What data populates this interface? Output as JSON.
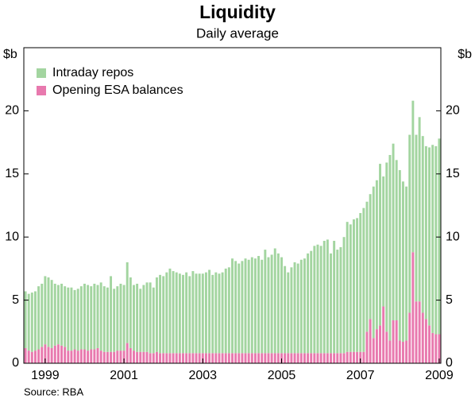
{
  "chart_data": {
    "type": "stacked_bar",
    "title": "Liquidity",
    "subtitle": "Daily average",
    "y_label": "$b",
    "source": "Source: RBA",
    "categories": [
      null,
      null,
      null,
      null,
      null,
      null,
      "1999",
      null,
      null,
      null,
      null,
      null,
      null,
      null,
      null,
      null,
      null,
      null,
      null,
      null,
      null,
      null,
      null,
      null,
      null,
      null,
      null,
      null,
      null,
      null,
      "2001",
      null,
      null,
      null,
      null,
      null,
      null,
      null,
      null,
      null,
      null,
      null,
      null,
      null,
      null,
      null,
      null,
      null,
      null,
      null,
      null,
      null,
      null,
      null,
      "2003",
      null,
      null,
      null,
      null,
      null,
      null,
      null,
      null,
      null,
      null,
      null,
      null,
      null,
      null,
      null,
      null,
      null,
      null,
      null,
      null,
      null,
      null,
      null,
      "2005",
      null,
      null,
      null,
      null,
      null,
      null,
      null,
      null,
      null,
      null,
      null,
      null,
      null,
      null,
      null,
      null,
      null,
      null,
      null,
      null,
      null,
      null,
      null,
      "2007",
      null,
      null,
      null,
      null,
      null,
      null,
      null,
      null,
      null,
      null,
      null,
      null,
      null,
      null,
      null,
      null,
      null,
      null,
      null,
      null,
      null,
      null,
      null,
      "2009"
    ],
    "series": [
      {
        "name": "Opening ESA balances",
        "color": "#e879ae",
        "values": [
          1.2,
          1.0,
          0.9,
          1.0,
          1.1,
          1.3,
          1.5,
          1.3,
          1.2,
          1.4,
          1.5,
          1.4,
          1.3,
          1.0,
          1.0,
          1.1,
          1.0,
          1.1,
          1.1,
          1.0,
          1.1,
          1.1,
          1.2,
          1.0,
          0.9,
          0.9,
          0.9,
          0.9,
          1.0,
          1.0,
          1.0,
          1.6,
          1.2,
          1.0,
          0.9,
          0.9,
          0.9,
          0.9,
          0.8,
          0.8,
          0.9,
          0.8,
          0.8,
          0.8,
          0.8,
          0.8,
          0.8,
          0.8,
          0.8,
          0.8,
          0.8,
          0.8,
          0.8,
          0.8,
          0.8,
          0.8,
          0.8,
          0.8,
          0.8,
          0.8,
          0.8,
          0.8,
          0.8,
          0.8,
          0.8,
          0.8,
          0.8,
          0.8,
          0.8,
          0.8,
          0.8,
          0.8,
          0.8,
          0.8,
          0.8,
          0.8,
          0.8,
          0.8,
          0.8,
          0.8,
          0.8,
          0.8,
          0.8,
          0.8,
          0.8,
          0.8,
          0.8,
          0.8,
          0.8,
          0.8,
          0.8,
          0.8,
          0.8,
          0.8,
          0.8,
          0.8,
          0.8,
          0.8,
          0.9,
          0.9,
          0.9,
          0.9,
          0.9,
          0.9,
          2.5,
          3.5,
          2.0,
          2.7,
          3.0,
          4.5,
          2.5,
          1.8,
          3.4,
          3.4,
          1.8,
          1.7,
          1.8,
          4.0,
          8.8,
          4.9,
          4.9,
          4.0,
          3.5,
          3.0,
          2.4,
          2.3,
          2.3
        ]
      },
      {
        "name": "Intraday repos",
        "color": "#a3d5a0",
        "values": [
          4.5,
          4.5,
          4.7,
          4.7,
          5.0,
          5.0,
          5.4,
          5.5,
          5.4,
          4.9,
          4.7,
          4.9,
          4.8,
          5.0,
          5.0,
          4.7,
          4.9,
          5.0,
          5.2,
          5.2,
          5.0,
          5.2,
          5.0,
          5.4,
          5.2,
          5.1,
          6.0,
          5.0,
          5.1,
          5.3,
          5.2,
          6.4,
          5.6,
          5.2,
          5.4,
          5.0,
          5.3,
          5.5,
          5.6,
          5.2,
          5.9,
          6.2,
          6.1,
          6.4,
          6.7,
          6.5,
          6.4,
          6.3,
          6.2,
          6.4,
          6.1,
          6.5,
          6.3,
          6.3,
          6.3,
          6.4,
          6.6,
          6.2,
          6.4,
          6.3,
          6.4,
          6.7,
          6.8,
          7.5,
          7.3,
          7.1,
          7.3,
          7.5,
          7.4,
          7.6,
          7.5,
          7.7,
          7.4,
          8.2,
          7.6,
          7.8,
          8.3,
          7.9,
          7.6,
          6.9,
          6.4,
          6.8,
          7.2,
          7.1,
          7.4,
          7.5,
          7.9,
          8.1,
          8.5,
          8.6,
          8.5,
          8.9,
          9.0,
          7.9,
          8.9,
          8.2,
          8.4,
          9.2,
          10.3,
          10.1,
          10.5,
          10.6,
          11.0,
          11.4,
          10.3,
          9.9,
          12.0,
          11.8,
          12.8,
          10.3,
          13.4,
          14.7,
          14.0,
          12.7,
          13.5,
          12.7,
          12.2,
          14.1,
          12.0,
          13.2,
          14.6,
          14.0,
          13.7,
          14.1,
          14.9,
          14.9,
          15.5
        ]
      }
    ],
    "legend_order": [
      1,
      0
    ],
    "ylim": [
      0,
      25
    ],
    "yticks": [
      0,
      5,
      10,
      15,
      20,
      25
    ],
    "legend": "upper left"
  }
}
